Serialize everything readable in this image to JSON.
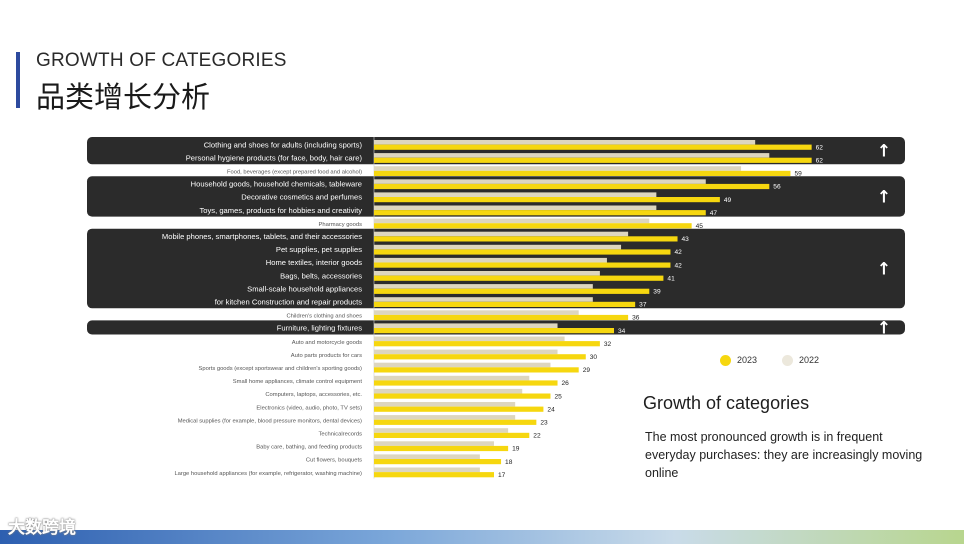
{
  "header": {
    "title_en": "GROWTH OF CATEGORIES",
    "title_cn": "品类增长分析"
  },
  "colors": {
    "bar_2023": "#f6d70f",
    "bar_2022": "#ddd6bf",
    "band": "#2b2b2b",
    "accent": "#2d4a9e"
  },
  "chart_data": {
    "type": "bar",
    "orientation": "horizontal",
    "categories": [
      "Clothing and shoes for adults (including sports)",
      "Personal hygiene products (for face, body, hair care)",
      "Food, beverages (except prepared food and alcohol)",
      "Household goods, household chemicals, tableware",
      "Decorative cosmetics and perfumes",
      "Toys, games, products for hobbies and creativity",
      "Pharmacy goods",
      "Mobile phones,          smartphones, tablets, and their accessories",
      "Pet supplies, pet supplies",
      "Home textiles, interior goods",
      "Bags, belts, accessories",
      "Small-scale household appliances",
      "for kitchen Construction and repair products",
      "Children's clothing and shoes",
      "Furniture, lighting fixtures",
      "Auto and motorcycle goods",
      "Auto parts products for cars",
      "Sports goods (except sportswear and children's sporting goods)",
      "Small home appliances, climate control equipment",
      "Computers, laptops, accessories, etc.",
      "Electronics (video, audio, photo, TV sets)",
      "Medical supplies (for example, blood pressure monitors, dental devices)",
      "Technicalrecords",
      "Baby care, bathing, and feeding products",
      "Cut flowers, bouquets",
      "Large household appliances (for example, refrigerator, washing machine)"
    ],
    "series": [
      {
        "name": "2023",
        "values": [
          62,
          62,
          59,
          56,
          49,
          47,
          45,
          43,
          42,
          42,
          41,
          39,
          37,
          36,
          34,
          32,
          30,
          29,
          26,
          25,
          24,
          23,
          22,
          19,
          18,
          17
        ]
      },
      {
        "name": "2022",
        "values": [
          54,
          56,
          52,
          47,
          40,
          40,
          39,
          36,
          35,
          33,
          32,
          31,
          31,
          29,
          26,
          27,
          26,
          25,
          22,
          21,
          20,
          20,
          19,
          17,
          15,
          15
        ]
      }
    ],
    "xlim": [
      0,
      68
    ],
    "highlight_groups": [
      {
        "from": 0,
        "to": 1,
        "arrow": "↑"
      },
      {
        "from": 3,
        "to": 5,
        "arrow": "↑"
      },
      {
        "from": 7,
        "to": 12,
        "arrow": "↑"
      },
      {
        "from": 14,
        "to": 14,
        "arrow": "↑"
      }
    ],
    "legend": [
      "2023",
      "2022"
    ],
    "legend_position": "right"
  },
  "annotation": {
    "title": "Growth of categories",
    "text": "The most pronounced growth is in frequent everyday purchases: they are increasingly moving online"
  },
  "watermark": "大数跨境"
}
